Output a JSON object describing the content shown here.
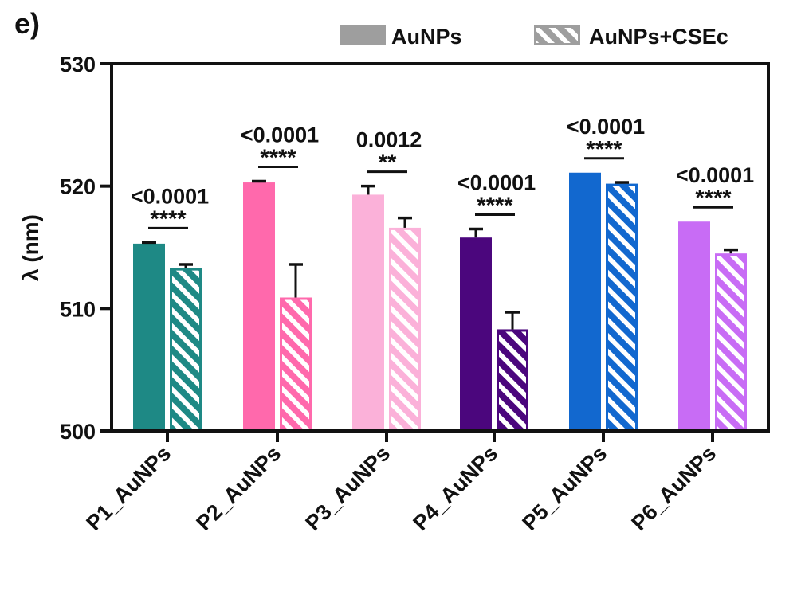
{
  "figure": {
    "panel_label": "e)"
  },
  "chart_data": {
    "type": "bar",
    "ylabel": "λ (nm)",
    "xlabel": "",
    "ylim": [
      500,
      530
    ],
    "yticks": [
      500,
      510,
      520,
      530
    ],
    "categories": [
      "P1_AuNPs",
      "P2_AuNPs",
      "P3_AuNPs",
      "P4_AuNPs",
      "P5_AuNPs",
      "P6_AuNPs"
    ],
    "category_colors": [
      "#1E8985",
      "#FF69AC",
      "#FBB1D9",
      "#4B067D",
      "#1268CF",
      "#C86CF5"
    ],
    "series": [
      {
        "name": "AuNPs",
        "fill": "solid",
        "values": [
          515.3,
          520.3,
          519.3,
          515.8,
          521.1,
          517.1
        ],
        "errors": [
          0.1,
          0.1,
          0.7,
          0.7,
          0.0,
          0.0
        ]
      },
      {
        "name": "AuNPs+CSEc",
        "fill": "hatched",
        "values": [
          513.3,
          510.9,
          516.6,
          508.3,
          520.2,
          514.5
        ],
        "errors": [
          0.3,
          2.7,
          0.8,
          1.4,
          0.1,
          0.3
        ]
      }
    ],
    "annotations": [
      {
        "p_value": "<0.0001",
        "stars": "****"
      },
      {
        "p_value": "<0.0001",
        "stars": "****"
      },
      {
        "p_value": "0.0012",
        "stars": "**"
      },
      {
        "p_value": "<0.0001",
        "stars": "****"
      },
      {
        "p_value": "<0.0001",
        "stars": "****"
      },
      {
        "p_value": "<0.0001",
        "stars": "****"
      }
    ],
    "legend": {
      "position": "top-right",
      "entries": [
        {
          "label": "AuNPs",
          "swatch_color": "#9E9E9E",
          "fill": "solid"
        },
        {
          "label": "AuNPs+CSEc",
          "swatch_color": "#9E9E9E",
          "fill": "hatched"
        }
      ]
    },
    "grid": false
  }
}
